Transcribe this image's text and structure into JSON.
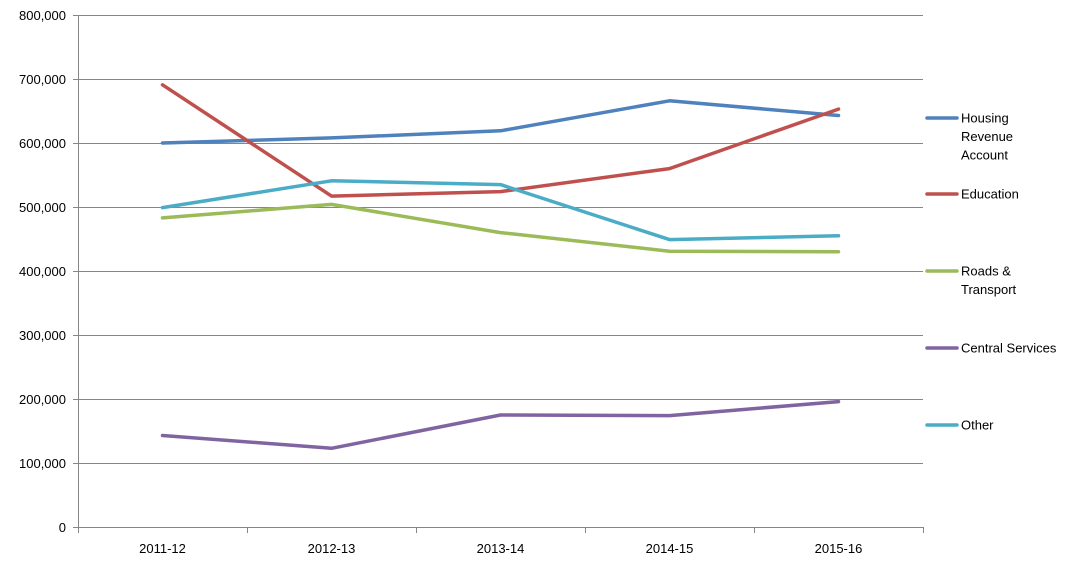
{
  "chart_data": {
    "type": "line",
    "title": "",
    "xlabel": "",
    "ylabel": "",
    "categories": [
      "2011-12",
      "2012-13",
      "2013-14",
      "2014-15",
      "2015-16"
    ],
    "ylim": [
      0,
      800000
    ],
    "yticks": [
      0,
      100000,
      200000,
      300000,
      400000,
      500000,
      600000,
      700000,
      800000
    ],
    "ytick_labels": [
      "0",
      "100,000",
      "200,000",
      "300,000",
      "400,000",
      "500,000",
      "600,000",
      "700,000",
      "800,000"
    ],
    "grid": true,
    "legend_position": "right",
    "series": [
      {
        "name": "Housing Revenue Account",
        "legend_lines": [
          "Housing",
          "Revenue",
          "Account"
        ],
        "color": "#4F81BD",
        "values": [
          600000,
          608000,
          619000,
          666000,
          643000
        ]
      },
      {
        "name": "Education",
        "legend_lines": [
          "Education"
        ],
        "color": "#C0504D",
        "values": [
          691000,
          517000,
          524000,
          560000,
          653000
        ]
      },
      {
        "name": "Roads & Transport",
        "legend_lines": [
          "Roads &",
          "Transport"
        ],
        "color": "#9BBB59",
        "values": [
          483000,
          504000,
          460000,
          431000,
          430000
        ]
      },
      {
        "name": "Central Services",
        "legend_lines": [
          "Central Services"
        ],
        "color": "#8064A2",
        "values": [
          143000,
          123000,
          175000,
          174000,
          196000
        ]
      },
      {
        "name": "Other",
        "legend_lines": [
          "Other"
        ],
        "color": "#4BACC6",
        "values": [
          499000,
          541000,
          535000,
          449000,
          455000
        ]
      }
    ]
  }
}
